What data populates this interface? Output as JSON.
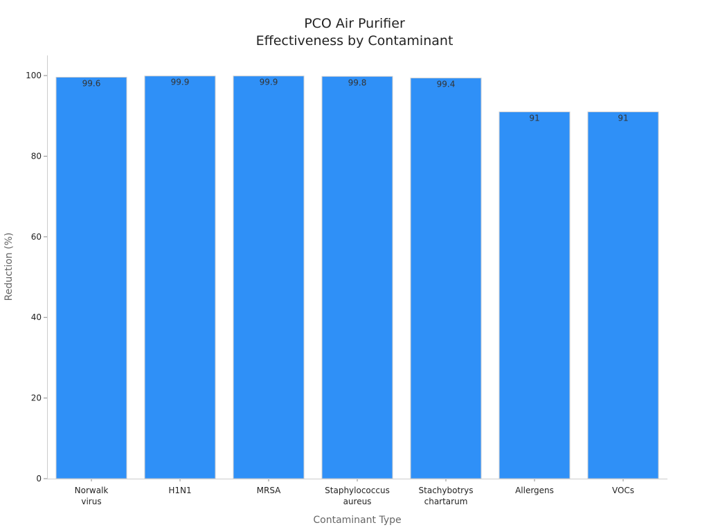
{
  "chart_data": {
    "type": "bar",
    "title": [
      "PCO Air Purifier",
      "Effectiveness by Contaminant"
    ],
    "xlabel": "Contaminant Type",
    "ylabel": "Reduction (%)",
    "categories": [
      [
        "Norwalk",
        "virus"
      ],
      [
        "H1N1"
      ],
      [
        "MRSA"
      ],
      [
        "Staphylococcus",
        "aureus"
      ],
      [
        "Stachybotrys",
        "chartarum"
      ],
      [
        "Allergens"
      ],
      [
        "VOCs"
      ]
    ],
    "values": [
      99.6,
      99.9,
      99.9,
      99.8,
      99.4,
      91,
      91
    ],
    "value_labels": [
      "99.6",
      "99.9",
      "99.9",
      "99.8",
      "99.4",
      "91",
      "91"
    ],
    "ylim": [
      0,
      105
    ],
    "yticks": [
      0,
      20,
      40,
      60,
      80,
      100
    ],
    "grid": false,
    "legend": false,
    "colors": {
      "bar": "#2f90f7"
    }
  }
}
